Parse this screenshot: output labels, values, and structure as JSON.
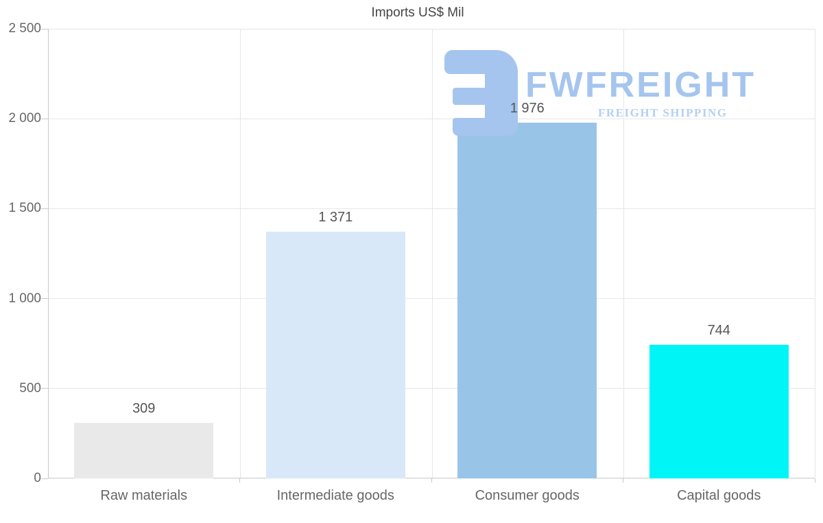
{
  "chart_data": {
    "type": "bar",
    "title": "Imports US$ Mil",
    "categories": [
      "Raw materials",
      "Intermediate goods",
      "Consumer goods",
      "Capital goods"
    ],
    "values": [
      309,
      1371,
      1976,
      744
    ],
    "value_labels": [
      "309",
      "1 371",
      "1 976",
      "744"
    ],
    "bar_colors": [
      "#e9e9e9",
      "#d9e8f8",
      "#98c4e8",
      "#00f6f6"
    ],
    "ylim": [
      0,
      2500
    ],
    "ytick_interval": 500,
    "yticks": [
      "0",
      "500",
      "1 000",
      "1 500",
      "2 000",
      "2 500"
    ],
    "xlabel": "",
    "ylabel": "",
    "grid": true,
    "legend": false,
    "colors": {
      "gridline": "#e6e6e6",
      "axis_line": "#c8c8c8",
      "title_text": "#444444",
      "axis_label_text": "#666666",
      "value_label_text": "#555555"
    }
  },
  "watermark": {
    "brand": "FWFREIGHT",
    "tagline": "FREIGHT SHIPPING",
    "mark_color": "#a5c5ef",
    "brand_color": "#a5c5ef",
    "tagline_color": "#b4d0f1"
  }
}
